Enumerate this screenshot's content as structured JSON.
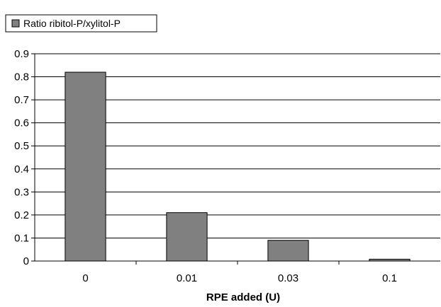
{
  "chart_data": {
    "type": "bar",
    "categories": [
      "0",
      "0.01",
      "0.03",
      "0.1"
    ],
    "series": [
      {
        "name": "Ratio ribitol-P/xylitol-P",
        "values": [
          0.82,
          0.21,
          0.09,
          0.008
        ],
        "color": "#808080"
      }
    ],
    "xlabel": "RPE added (U)",
    "ylabel": "",
    "ylim": [
      0,
      0.9
    ],
    "yticks": [
      "0",
      "0.1",
      "0.2",
      "0.3",
      "0.4",
      "0.5",
      "0.6",
      "0.7",
      "0.8",
      "0.9"
    ],
    "grid": true,
    "legend": "top-left"
  }
}
